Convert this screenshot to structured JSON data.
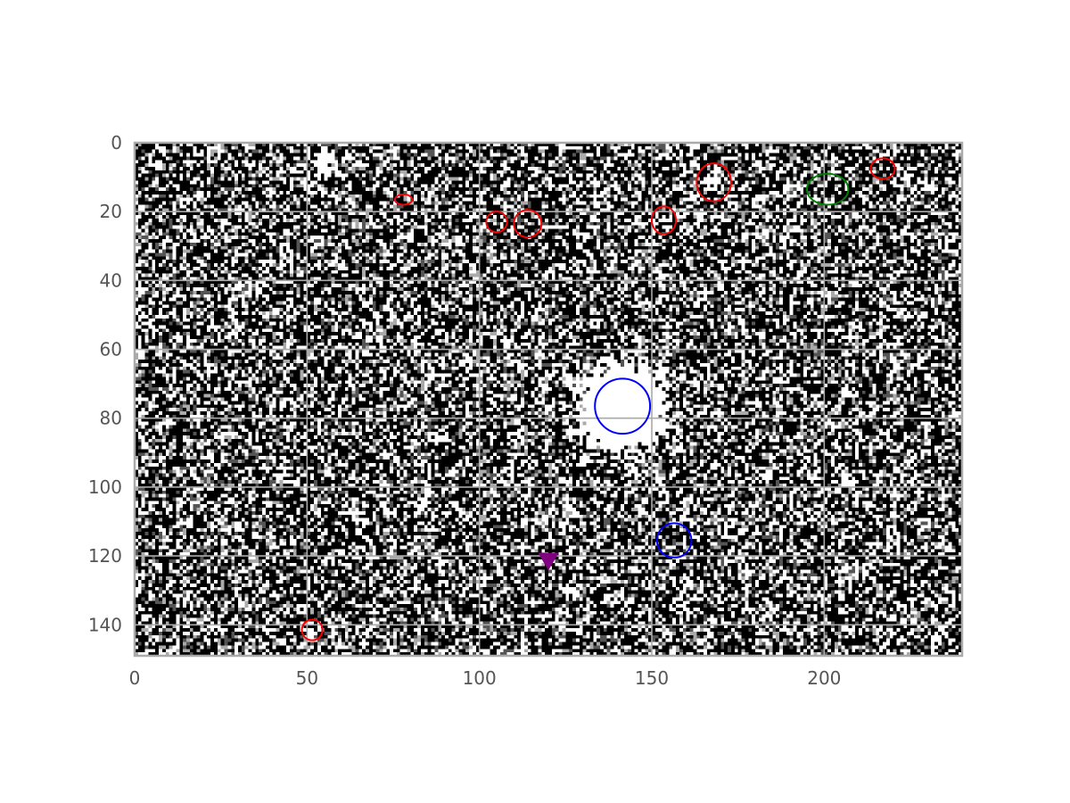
{
  "chart_data": {
    "type": "heatmap",
    "title": "",
    "xlabel": "",
    "ylabel": "",
    "xlim": [
      0,
      240
    ],
    "ylim": [
      149,
      0
    ],
    "xticks": [
      0,
      50,
      100,
      150,
      200
    ],
    "yticks": [
      0,
      20,
      40,
      60,
      80,
      100,
      120,
      140
    ],
    "grid": true,
    "colormap": "gray",
    "background": {
      "description_colors": [
        "#000000",
        "#555555",
        "#aaaaaa",
        "#ffffff"
      ],
      "noise_white_fraction": 0.38,
      "bright_source": {
        "x": 141,
        "y": 76,
        "radius": 18
      },
      "faint_sources": [
        {
          "x": 55,
          "y": 5,
          "radius": 4
        },
        {
          "x": 83,
          "y": 105,
          "radius": 3
        },
        {
          "x": 206,
          "y": 97,
          "radius": 3
        },
        {
          "x": 88,
          "y": 85,
          "radius": 2.5
        },
        {
          "x": 126,
          "y": 130,
          "radius": 2.5
        },
        {
          "x": 190,
          "y": 12,
          "radius": 2.5
        },
        {
          "x": 51,
          "y": 142,
          "radius": 2.5
        },
        {
          "x": 167,
          "y": 11,
          "radius": 3
        }
      ]
    },
    "markers": [
      {
        "shape": "ellipse",
        "color": "#ff0000",
        "x": 78,
        "y": 16.5,
        "rx": 2.5,
        "ry": 1.5
      },
      {
        "shape": "ellipse",
        "color": "#ff0000",
        "x": 105,
        "y": 23,
        "rx": 3,
        "ry": 3
      },
      {
        "shape": "ellipse",
        "color": "#ff0000",
        "x": 114,
        "y": 23.5,
        "rx": 4,
        "ry": 4
      },
      {
        "shape": "ellipse",
        "color": "#ff0000",
        "x": 153.5,
        "y": 22.5,
        "rx": 3.5,
        "ry": 4
      },
      {
        "shape": "ellipse",
        "color": "#ff0000",
        "x": 168,
        "y": 11.5,
        "rx": 5,
        "ry": 5.5
      },
      {
        "shape": "ellipse",
        "color": "#ff0000",
        "x": 217,
        "y": 7.5,
        "rx": 3.5,
        "ry": 3
      },
      {
        "shape": "ellipse",
        "color": "#ff0000",
        "x": 51.5,
        "y": 141.5,
        "rx": 3,
        "ry": 3
      },
      {
        "shape": "ellipse",
        "color": "#008000",
        "x": 201,
        "y": 13.5,
        "rx": 6,
        "ry": 4.5
      },
      {
        "shape": "ellipse",
        "color": "#0000ff",
        "x": 141.5,
        "y": 76.5,
        "rx": 8,
        "ry": 8
      },
      {
        "shape": "ellipse",
        "color": "#0000ff",
        "x": 156.5,
        "y": 115.5,
        "rx": 5,
        "ry": 5
      },
      {
        "shape": "triangle-down",
        "color": "#800080",
        "x": 120,
        "y": 121.5,
        "size": 3
      }
    ],
    "colors": {
      "axis_frame": "#aaaaaa",
      "grid": "#aaaaaa",
      "tick_text": "#555555"
    }
  }
}
